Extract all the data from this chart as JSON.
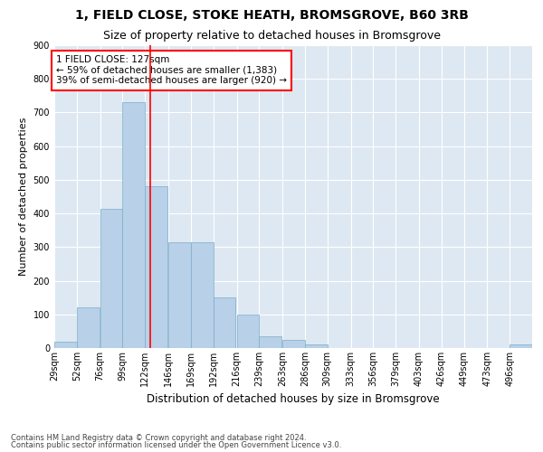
{
  "title": "1, FIELD CLOSE, STOKE HEATH, BROMSGROVE, B60 3RB",
  "subtitle": "Size of property relative to detached houses in Bromsgrove",
  "xlabel": "Distribution of detached houses by size in Bromsgrove",
  "ylabel": "Number of detached properties",
  "footnote1": "Contains HM Land Registry data © Crown copyright and database right 2024.",
  "footnote2": "Contains public sector information licensed under the Open Government Licence v3.0.",
  "annotation_line1": "1 FIELD CLOSE: 127sqm",
  "annotation_line2": "← 59% of detached houses are smaller (1,383)",
  "annotation_line3": "39% of semi-detached houses are larger (920) →",
  "bar_color": "#b8d0e8",
  "bar_edge_color": "#7aaec8",
  "red_line_x": 127,
  "categories": [
    "29sqm",
    "52sqm",
    "76sqm",
    "99sqm",
    "122sqm",
    "146sqm",
    "169sqm",
    "192sqm",
    "216sqm",
    "239sqm",
    "263sqm",
    "286sqm",
    "309sqm",
    "333sqm",
    "356sqm",
    "379sqm",
    "403sqm",
    "426sqm",
    "449sqm",
    "473sqm",
    "496sqm"
  ],
  "bin_starts": [
    29,
    52,
    76,
    99,
    122,
    146,
    169,
    192,
    216,
    239,
    263,
    286,
    309,
    333,
    356,
    379,
    403,
    426,
    449,
    473,
    496
  ],
  "bin_width": 23,
  "values": [
    18,
    120,
    415,
    730,
    480,
    315,
    315,
    150,
    100,
    35,
    25,
    10,
    0,
    0,
    0,
    0,
    0,
    0,
    0,
    0,
    10
  ],
  "ylim": [
    0,
    900
  ],
  "yticks": [
    0,
    100,
    200,
    300,
    400,
    500,
    600,
    700,
    800,
    900
  ],
  "bg_color": "#dde8f3",
  "grid_color": "#ffffff",
  "title_fontsize": 10,
  "subtitle_fontsize": 9,
  "xlabel_fontsize": 8.5,
  "ylabel_fontsize": 8,
  "tick_fontsize": 7,
  "annotation_fontsize": 7.5,
  "footnote_fontsize": 6
}
